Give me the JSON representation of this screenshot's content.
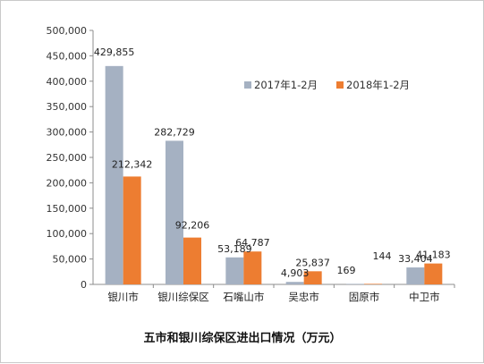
{
  "chart_data": {
    "type": "bar",
    "title": "五市和银川综保区进出口情况（万元）",
    "categories": [
      "银川市",
      "银川综保区",
      "石嘴山市",
      "吴忠市",
      "固原市",
      "中卫市"
    ],
    "series": [
      {
        "name": "2017年1-2月",
        "color": "#a5b1c2",
        "values": [
          429855,
          282729,
          53189,
          4903,
          169,
          33404
        ],
        "labels": [
          "429,855",
          "282,729",
          "53,189",
          "4,903",
          "169",
          "33,404"
        ]
      },
      {
        "name": "2018年1-2月",
        "color": "#ed7d31",
        "values": [
          212342,
          92206,
          64787,
          25837,
          144,
          41183
        ],
        "labels": [
          "212,342",
          "92,206",
          "64,787",
          "25,837",
          "144",
          "41,183"
        ]
      }
    ],
    "yticks": [
      "0",
      "50,000",
      "100,000",
      "150,000",
      "200,000",
      "250,000",
      "300,000",
      "350,000",
      "400,000",
      "450,000",
      "500,000"
    ],
    "ylim": [
      0,
      500000
    ],
    "xlabel": "",
    "ylabel": "",
    "legend_position": "top-right",
    "grid": false
  }
}
